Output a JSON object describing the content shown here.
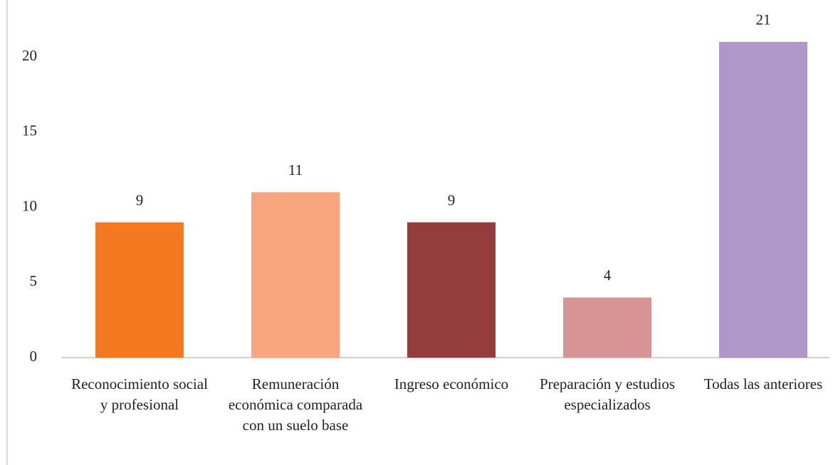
{
  "chart_data": {
    "type": "bar",
    "categories": [
      "Reconocimiento social y profesional",
      "Remuneración económica comparada con un suelo base",
      "Ingreso económico",
      "Preparación y estudios especializados",
      "Todas las anteriores"
    ],
    "values": [
      9,
      11,
      9,
      4,
      21
    ],
    "colors": [
      "#f47920",
      "#f9a57f",
      "#953c3c",
      "#d69594",
      "#af98c8"
    ],
    "ylim": [
      0,
      22
    ],
    "yticks": [
      0,
      5,
      10,
      15,
      20
    ],
    "grid": false
  }
}
